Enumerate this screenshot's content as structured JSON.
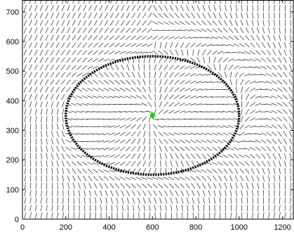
{
  "chart_data": {
    "type": "quiver",
    "xlim": [
      0,
      1250
    ],
    "ylim": [
      0,
      740
    ],
    "x_ticks": [
      0,
      200,
      400,
      600,
      800,
      1000,
      1200
    ],
    "y_ticks": [
      0,
      100,
      200,
      300,
      400,
      500,
      600,
      700
    ],
    "x_tick_labels": [
      "0",
      "200",
      "400",
      "600",
      "800",
      "1000",
      "1200"
    ],
    "y_tick_labels": [
      "0",
      "100",
      "200",
      "300",
      "400",
      "500",
      "600",
      "700"
    ],
    "vector_field": {
      "grid_spacing": 25,
      "arrow_color": "#000000",
      "interior_pattern": "circulation around center",
      "exterior_pattern": "mostly diagonal toward upper-right"
    },
    "ellipse": {
      "center": [
        600,
        350
      ],
      "radius_x": 400,
      "radius_y": 200,
      "style": "dotted",
      "color": "#000000"
    },
    "center_point": {
      "x": 600,
      "y": 350,
      "color": "#00e000"
    },
    "grid": false,
    "title": "",
    "xlabel": "",
    "ylabel": ""
  }
}
